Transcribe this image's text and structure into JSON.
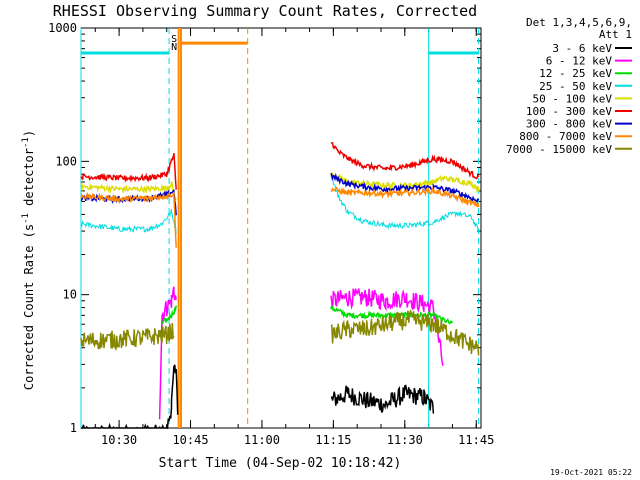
{
  "chart_data": {
    "type": "line",
    "title": "RHESSI Observing Summary Count Rates, Corrected",
    "xlabel": "Start Time (04-Sep-02 10:18:42)",
    "ylabel": "Corrected Count Rate (s",
    "ylabel_sup1": "-1",
    "ylabel_mid": " detector",
    "ylabel_sup2": "-1",
    "ylabel_end": ")",
    "yscale": "log",
    "ylim": [
      1,
      1000
    ],
    "xlim_min": [
      -4,
      58
    ],
    "x_unit": "minutes after 10:26",
    "y_ticks": [
      {
        "value": 1,
        "label": "1"
      },
      {
        "value": 10,
        "label": "10"
      },
      {
        "value": 100,
        "label": "100"
      },
      {
        "value": 1000,
        "label": "1000"
      }
    ],
    "x_ticks": [
      {
        "value": 4,
        "label": "10:30"
      },
      {
        "value": 19,
        "label": "10:45"
      },
      {
        "value": 34,
        "label": "11:00"
      },
      {
        "value": 49,
        "label": "11:15"
      },
      {
        "value": 64,
        "label": "11:30"
      },
      {
        "value": 79,
        "label": "11:45"
      }
    ],
    "legend": {
      "header1": "Det 1,3,4,5,6,9,",
      "header2": "Att 1",
      "placement": "right",
      "entries": [
        {
          "label": "3 - 6 keV",
          "color": "#000000"
        },
        {
          "label": "6 - 12 keV",
          "color": "#ff00ff"
        },
        {
          "label": "12 - 25 keV",
          "color": "#00dd00"
        },
        {
          "label": "25 - 50 keV",
          "color": "#00dddd"
        },
        {
          "label": "50 - 100 keV",
          "color": "#dddd00"
        },
        {
          "label": "100 - 300 keV",
          "color": "#ee0000"
        },
        {
          "label": "300 - 800 keV",
          "color": "#0000cc"
        },
        {
          "label": "800 - 7000 keV",
          "color": "#ff8800"
        },
        {
          "label": "7000 - 15000 keV",
          "color": "#888800"
        }
      ]
    },
    "flags": [
      {
        "label": "S",
        "color": "#ff8800"
      },
      {
        "label": "N",
        "color": "#00dddd"
      }
    ],
    "series": [
      {
        "name": "3 - 6 keV",
        "segments": [
          [
            [
              -4,
              0.9
            ],
            [
              14,
              0.9
            ],
            [
              15,
              1.5
            ],
            [
              15.5,
              2.5
            ],
            [
              16,
              3
            ],
            [
              16.3,
              1.2
            ]
          ],
          [
            [
              48.5,
              1.6
            ],
            [
              52,
              1.8
            ],
            [
              56,
              1.6
            ],
            [
              60,
              1.5
            ],
            [
              64,
              1.8
            ],
            [
              68,
              1.7
            ],
            [
              70,
              1.4
            ]
          ]
        ]
      },
      {
        "name": "6 - 12 keV",
        "segments": [
          [
            [
              12.5,
              1.3
            ],
            [
              13,
              7
            ],
            [
              14,
              8
            ],
            [
              15,
              9
            ],
            [
              15.5,
              11
            ],
            [
              16,
              9
            ]
          ],
          [
            [
              48.5,
              9
            ],
            [
              52,
              9.5
            ],
            [
              56,
              9.5
            ],
            [
              60,
              9
            ],
            [
              64,
              9.5
            ],
            [
              68,
              8.5
            ],
            [
              70,
              8
            ],
            [
              72,
              3
            ]
          ]
        ]
      },
      {
        "name": "12 - 25 keV",
        "segments": [
          [
            [
              13,
              6
            ],
            [
              14,
              6.5
            ],
            [
              15,
              7
            ],
            [
              16,
              8
            ]
          ],
          [
            [
              48.5,
              8
            ],
            [
              52,
              7
            ],
            [
              56,
              7
            ],
            [
              60,
              7
            ],
            [
              64,
              7
            ],
            [
              68,
              7
            ],
            [
              70,
              7
            ],
            [
              72,
              6.5
            ],
            [
              74,
              6
            ]
          ]
        ]
      },
      {
        "name": "25 - 50 keV",
        "segments": [
          [
            [
              -4,
              34
            ],
            [
              4,
              31
            ],
            [
              10,
              31
            ],
            [
              13,
              34
            ],
            [
              15,
              42
            ],
            [
              16,
              30
            ]
          ],
          [
            [
              48.5,
              80
            ],
            [
              50,
              55
            ],
            [
              52,
              42
            ],
            [
              55,
              36
            ],
            [
              60,
              33
            ],
            [
              65,
              33
            ],
            [
              70,
              35
            ],
            [
              72,
              38
            ],
            [
              75,
              41
            ],
            [
              78,
              38
            ],
            [
              79.5,
              30
            ]
          ]
        ]
      },
      {
        "name": "50 - 100 keV",
        "segments": [
          [
            [
              -4,
              65
            ],
            [
              4,
              62
            ],
            [
              10,
              62
            ],
            [
              14,
              63
            ],
            [
              15,
              68
            ],
            [
              16,
              50
            ]
          ],
          [
            [
              48.5,
              80
            ],
            [
              52,
              70
            ],
            [
              56,
              68
            ],
            [
              60,
              66
            ],
            [
              65,
              66
            ],
            [
              70,
              70
            ],
            [
              72,
              75
            ],
            [
              75,
              72
            ],
            [
              78,
              68
            ],
            [
              79.5,
              62
            ]
          ]
        ]
      },
      {
        "name": "100 - 300 keV",
        "segments": [
          [
            [
              -4,
              77
            ],
            [
              4,
              75
            ],
            [
              10,
              75
            ],
            [
              14,
              80
            ],
            [
              15.5,
              112
            ],
            [
              16,
              60
            ]
          ],
          [
            [
              48.5,
              140
            ],
            [
              50,
              118
            ],
            [
              52,
              105
            ],
            [
              55,
              93
            ],
            [
              60,
              88
            ],
            [
              65,
              93
            ],
            [
              70,
              104
            ],
            [
              74,
              100
            ],
            [
              77,
              85
            ],
            [
              79.5,
              75
            ]
          ]
        ]
      },
      {
        "name": "300 - 800 keV",
        "segments": [
          [
            [
              -4,
              53
            ],
            [
              4,
              52
            ],
            [
              10,
              53
            ],
            [
              14,
              56
            ],
            [
              15.5,
              60
            ],
            [
              16,
              40
            ]
          ],
          [
            [
              48.5,
              78
            ],
            [
              52,
              68
            ],
            [
              56,
              64
            ],
            [
              60,
              62
            ],
            [
              65,
              63
            ],
            [
              70,
              64
            ],
            [
              74,
              60
            ],
            [
              77,
              55
            ],
            [
              79.5,
              50
            ]
          ]
        ]
      },
      {
        "name": "800 - 7000 keV",
        "segments": [
          [
            [
              -4,
              55
            ],
            [
              4,
              52
            ],
            [
              10,
              53
            ],
            [
              14,
              55
            ],
            [
              15.5,
              57
            ],
            [
              16,
              22
            ]
          ],
          [
            [
              48.5,
              62
            ],
            [
              52,
              58
            ],
            [
              56,
              58
            ],
            [
              60,
              57
            ],
            [
              65,
              58
            ],
            [
              70,
              60
            ],
            [
              74,
              55
            ],
            [
              77,
              50
            ],
            [
              79.5,
              47
            ]
          ]
        ]
      },
      {
        "name": "7000 - 15000 keV",
        "segments": [
          [
            [
              -4,
              4.5
            ],
            [
              4,
              4.6
            ],
            [
              10,
              4.8
            ],
            [
              14,
              5
            ],
            [
              15.5,
              5.5
            ]
          ],
          [
            [
              48.5,
              5
            ],
            [
              52,
              5.5
            ],
            [
              56,
              5.5
            ],
            [
              60,
              6
            ],
            [
              65,
              6.5
            ],
            [
              70,
              6
            ],
            [
              74,
              5
            ],
            [
              77,
              4.3
            ],
            [
              79.5,
              4
            ]
          ]
        ]
      }
    ],
    "attenuator_state": [
      {
        "x": [
          -4,
          14.5
        ],
        "value": 650,
        "color": "#00dddd"
      },
      {
        "x": [
          17,
          31
        ],
        "value": 770,
        "color": "#ff8800"
      },
      {
        "x": [
          69,
          79.5
        ],
        "value": 650,
        "color": "#00dddd"
      }
    ],
    "markers": [
      {
        "x": -4,
        "color": "#00dddd",
        "style": "solid"
      },
      {
        "x": 14.5,
        "color": "#00dddd",
        "style": "dashed"
      },
      {
        "x": 16.5,
        "color": "#ff8800",
        "style": "solid"
      },
      {
        "x": 17,
        "color": "#ff8800",
        "style": "solid"
      },
      {
        "x": 31,
        "color": "#ff8800",
        "style": "dashed"
      },
      {
        "x": 69,
        "color": "#00dddd",
        "style": "solid"
      },
      {
        "x": 79.5,
        "color": "#00dddd",
        "style": "dashed"
      }
    ],
    "timestamp": "19-Oct-2021 05:22"
  }
}
